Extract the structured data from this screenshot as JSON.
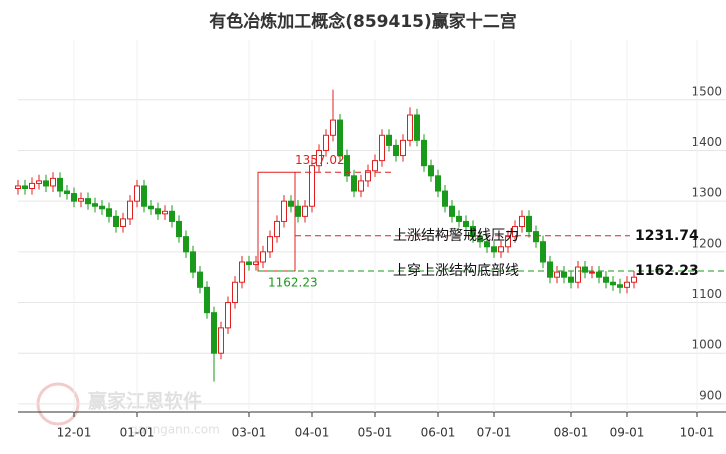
{
  "chart_data": {
    "type": "candlestick",
    "title": "有色冶炼加工概念(859415)赢家十二宫",
    "watermark": "赢家江恩软件",
    "watermark_url": "ganngann.com",
    "categories": [
      null,
      null,
      null,
      null,
      null,
      null,
      null,
      null,
      "12-01",
      null,
      null,
      null,
      null,
      null,
      null,
      null,
      null,
      "01-01",
      null,
      null,
      null,
      null,
      null,
      null,
      null,
      null,
      null,
      null,
      null,
      null,
      null,
      null,
      null,
      "03-01",
      null,
      null,
      null,
      null,
      null,
      null,
      null,
      null,
      "04-01",
      null,
      null,
      null,
      null,
      null,
      null,
      null,
      null,
      "05-01",
      null,
      null,
      null,
      null,
      null,
      null,
      null,
      null,
      "06-01",
      null,
      null,
      null,
      null,
      null,
      null,
      null,
      "07-01",
      null,
      null,
      null,
      null,
      null,
      null,
      null,
      null,
      null,
      null,
      "08-01",
      null,
      null,
      null,
      null,
      null,
      null,
      null,
      "09-01",
      null,
      null,
      null,
      null,
      null,
      null,
      null,
      null,
      null,
      "10-01"
    ],
    "open": [
      1325,
      1330,
      1325,
      1335,
      1340,
      1330,
      1345,
      1320,
      1315,
      1300,
      1305,
      1295,
      1290,
      1285,
      1270,
      1250,
      1265,
      1300,
      1330,
      1290,
      1285,
      1275,
      1280,
      1260,
      1230,
      1200,
      1160,
      1130,
      1080,
      1000,
      1050,
      1100,
      1140,
      1180,
      1175,
      1180,
      1200,
      1230,
      1260,
      1300,
      1290,
      1270,
      1290,
      1370,
      1400,
      1430,
      1460,
      1390,
      1350,
      1320,
      1340,
      1360,
      1380,
      1430,
      1410,
      1390,
      1420,
      1470,
      1420,
      1370,
      1350,
      1320,
      1290,
      1270,
      1260,
      1250,
      1230,
      1220,
      1210,
      1200,
      1210,
      1230,
      1250,
      1270,
      1240,
      1220,
      1180,
      1150,
      1160,
      1150,
      1140,
      1170,
      1160,
      1160,
      1150,
      1140,
      1135,
      1130,
      1140,
      null,
      null,
      null,
      null,
      null,
      null,
      null,
      null,
      null
    ],
    "high": [
      1342,
      1342,
      1347,
      1352,
      1352,
      1357,
      1357,
      1332,
      1327,
      1317,
      1317,
      1307,
      1302,
      1297,
      1282,
      1277,
      1312,
      1342,
      1342,
      1302,
      1297,
      1292,
      1292,
      1272,
      1242,
      1212,
      1172,
      1142,
      1092,
      1062,
      1112,
      1152,
      1192,
      1192,
      1192,
      1212,
      1242,
      1272,
      1312,
      1312,
      1302,
      1302,
      1382,
      1412,
      1442,
      1520,
      1472,
      1402,
      1362,
      1352,
      1372,
      1392,
      1442,
      1442,
      1422,
      1432,
      1485,
      1482,
      1432,
      1382,
      1362,
      1332,
      1302,
      1282,
      1272,
      1262,
      1242,
      1232,
      1222,
      1222,
      1242,
      1262,
      1282,
      1282,
      1252,
      1232,
      1192,
      1172,
      1172,
      1162,
      1182,
      1182,
      1172,
      1172,
      1162,
      1152,
      1147,
      1152,
      1162,
      null,
      null,
      null,
      null,
      null,
      null,
      null,
      null,
      null
    ],
    "low": [
      1313,
      1313,
      1313,
      1323,
      1318,
      1318,
      1308,
      1303,
      1288,
      1288,
      1283,
      1278,
      1273,
      1258,
      1238,
      1238,
      1253,
      1288,
      1278,
      1273,
      1263,
      1263,
      1248,
      1218,
      1188,
      1148,
      1118,
      1068,
      944,
      988,
      1038,
      1088,
      1128,
      1163,
      1163,
      1168,
      1188,
      1218,
      1248,
      1278,
      1258,
      1258,
      1278,
      1358,
      1388,
      1418,
      1378,
      1338,
      1308,
      1308,
      1328,
      1348,
      1368,
      1398,
      1378,
      1378,
      1408,
      1408,
      1358,
      1338,
      1308,
      1278,
      1258,
      1248,
      1238,
      1218,
      1208,
      1198,
      1188,
      1188,
      1198,
      1218,
      1238,
      1228,
      1208,
      1168,
      1138,
      1138,
      1138,
      1128,
      1128,
      1148,
      1148,
      1138,
      1128,
      1123,
      1118,
      1118,
      1128,
      null,
      null,
      null,
      null,
      null,
      null,
      null,
      null,
      null
    ],
    "close": [
      1330,
      1325,
      1335,
      1340,
      1330,
      1345,
      1320,
      1315,
      1300,
      1305,
      1295,
      1290,
      1285,
      1270,
      1250,
      1265,
      1300,
      1330,
      1290,
      1285,
      1275,
      1280,
      1260,
      1230,
      1200,
      1160,
      1130,
      1080,
      1000,
      1050,
      1100,
      1140,
      1180,
      1175,
      1180,
      1200,
      1230,
      1260,
      1300,
      1290,
      1270,
      1290,
      1370,
      1400,
      1430,
      1460,
      1390,
      1350,
      1320,
      1340,
      1360,
      1380,
      1430,
      1410,
      1390,
      1420,
      1470,
      1420,
      1370,
      1350,
      1320,
      1290,
      1270,
      1260,
      1250,
      1230,
      1220,
      1210,
      1200,
      1210,
      1230,
      1250,
      1270,
      1240,
      1220,
      1180,
      1150,
      1160,
      1150,
      1140,
      1170,
      1160,
      1160,
      1150,
      1140,
      1135,
      1130,
      1140,
      1150,
      null,
      null,
      null,
      null,
      null,
      null,
      null,
      null,
      null
    ],
    "up_color": "#e02020",
    "down_color": "#1a9a1a",
    "ylim": [
      884,
      1618
    ],
    "yticks": [
      900,
      1000,
      1100,
      1200,
      1300,
      1400,
      1500
    ],
    "grid": true,
    "box_high": 1357.02,
    "box_low": 1162.23,
    "pressure_label": "上涨结构警戒线压力",
    "pressure_value": 1231.74,
    "support_label": "上穿上涨结构底部线",
    "support_value": 1162.23
  }
}
